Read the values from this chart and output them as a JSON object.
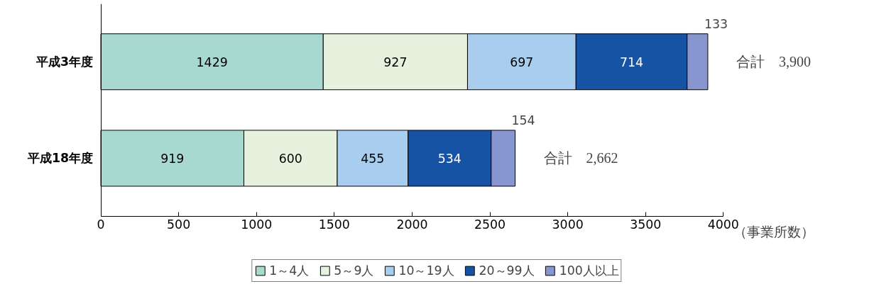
{
  "chart_data": {
    "type": "bar",
    "orientation": "horizontal",
    "stacked": true,
    "categories": [
      "平成3年度",
      "平成18年度"
    ],
    "series": [
      {
        "name": "1～4人",
        "color": "#a8d9d1",
        "values": [
          1429,
          919
        ]
      },
      {
        "name": "5～9人",
        "color": "#e6f2de",
        "values": [
          927,
          600
        ]
      },
      {
        "name": "10～19人",
        "color": "#a9cdee",
        "values": [
          697,
          455
        ]
      },
      {
        "name": "20～99人",
        "color": "#1753a5",
        "values": [
          714,
          534
        ]
      },
      {
        "name": "100人以上",
        "color": "#8896cf",
        "values": [
          133,
          154
        ]
      }
    ],
    "xlim": [
      0,
      4000
    ],
    "xticks": [
      0,
      500,
      1000,
      1500,
      2000,
      2500,
      3000,
      3500,
      4000
    ],
    "xlabel": "（事業所数）",
    "data_labels": true,
    "totals": [
      "合計　3,900",
      "合計　2,662"
    ],
    "grid": false,
    "legend": "bottom"
  }
}
